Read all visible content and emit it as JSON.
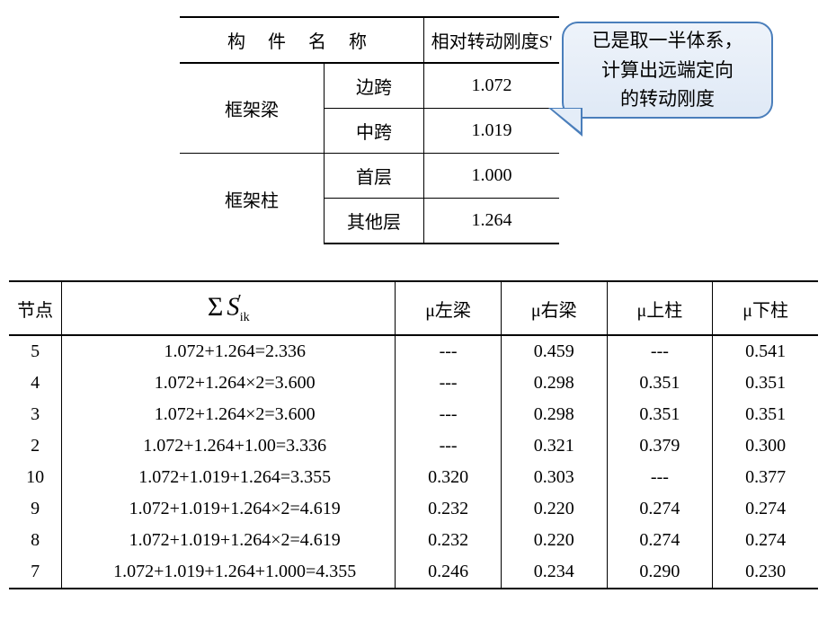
{
  "colors": {
    "text": "#000000",
    "border": "#000000",
    "callout_border": "#4a7ebb",
    "callout_fill_top": "#eef3fa",
    "callout_fill_bottom": "#dfe9f6",
    "background": "#ffffff"
  },
  "topTable": {
    "header": {
      "name": "构 件 名 称",
      "value": "相对转动刚度S'"
    },
    "groups": [
      {
        "group": "框架梁",
        "rows": [
          {
            "sub": "边跨",
            "value": "1.072"
          },
          {
            "sub": "中跨",
            "value": "1.019"
          }
        ]
      },
      {
        "group": "框架柱",
        "rows": [
          {
            "sub": "首层",
            "value": "1.000"
          },
          {
            "sub": "其他层",
            "value": "1.264"
          }
        ]
      }
    ]
  },
  "callout": {
    "line1": "已是取一半体系，",
    "line2": "计算出远端定向",
    "line3": "的转动刚度"
  },
  "bottomTable": {
    "headers": {
      "node": "节点",
      "sumSigma": "Σ",
      "sumS": "S",
      "sumPrime": "′",
      "sumSub": "ik",
      "muLeftBeam": "μ左梁",
      "muRightBeam": "μ右梁",
      "muUpperCol": "μ上柱",
      "muLowerCol": "μ下柱"
    },
    "rows": [
      {
        "node": "5",
        "sum": "1.072+1.264=2.336",
        "muL": "---",
        "muR": "0.459",
        "muU": "---",
        "muD": "0.541"
      },
      {
        "node": "4",
        "sum": "1.072+1.264×2=3.600",
        "muL": "---",
        "muR": "0.298",
        "muU": "0.351",
        "muD": "0.351"
      },
      {
        "node": "3",
        "sum": "1.072+1.264×2=3.600",
        "muL": "---",
        "muR": "0.298",
        "muU": "0.351",
        "muD": "0.351"
      },
      {
        "node": "2",
        "sum": "1.072+1.264+1.00=3.336",
        "muL": "---",
        "muR": "0.321",
        "muU": "0.379",
        "muD": "0.300"
      },
      {
        "node": "10",
        "sum": "1.072+1.019+1.264=3.355",
        "muL": "0.320",
        "muR": "0.303",
        "muU": "---",
        "muD": "0.377"
      },
      {
        "node": "9",
        "sum": "1.072+1.019+1.264×2=4.619",
        "muL": "0.232",
        "muR": "0.220",
        "muU": "0.274",
        "muD": "0.274"
      },
      {
        "node": "8",
        "sum": "1.072+1.019+1.264×2=4.619",
        "muL": "0.232",
        "muR": "0.220",
        "muU": "0.274",
        "muD": "0.274"
      },
      {
        "node": "7",
        "sum": "1.072+1.019+1.264+1.000=4.355",
        "muL": "0.246",
        "muR": "0.234",
        "muU": "0.290",
        "muD": "0.230"
      }
    ]
  }
}
